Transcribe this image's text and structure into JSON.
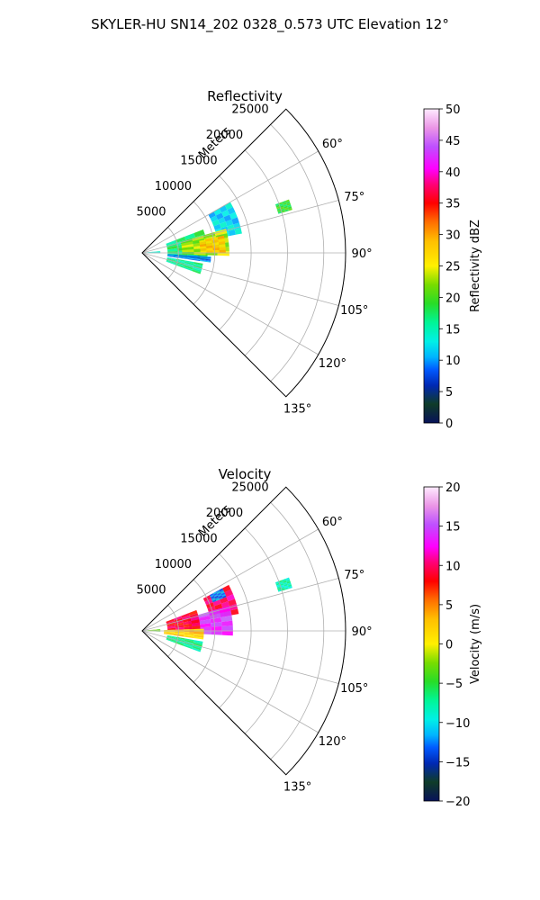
{
  "figure_title": "SKYLER-HU  SN14_202  0328_0.573 UTC Elevation 12°",
  "chart_data": [
    {
      "type": "heatmap",
      "projection": "polar-sector",
      "title": "Reflectivity",
      "range_label": "Meters",
      "range_ticks": [
        5000,
        10000,
        15000,
        20000,
        25000
      ],
      "range_tick_labels": [
        "5000",
        "10000",
        "15000",
        "20000",
        "25000"
      ],
      "angle_ticks_deg": [
        60,
        75,
        90,
        105,
        120,
        135
      ],
      "angle_tick_labels": [
        "60°",
        "75°",
        "90°",
        "105°",
        "120°",
        "135°"
      ],
      "angle_range_deg": [
        45,
        135
      ],
      "range_max": 28000,
      "grid": true,
      "colorbar": {
        "label": "Reflectivity dBZ",
        "range": [
          0,
          50
        ],
        "ticks": [
          0,
          5,
          10,
          15,
          20,
          25,
          30,
          35,
          40,
          45,
          50
        ],
        "tick_labels": [
          "0",
          "5",
          "10",
          "15",
          "20",
          "25",
          "30",
          "35",
          "40",
          "45",
          "50"
        ]
      },
      "echo_regions": [
        {
          "az": [
            60,
            79
          ],
          "r": [
            10500,
            14000
          ],
          "value": 12
        },
        {
          "az": [
            69,
            96
          ],
          "r": [
            3500,
            9000
          ],
          "value": 17
        },
        {
          "az": [
            74,
            92
          ],
          "r": [
            5500,
            12000
          ],
          "value": 23
        },
        {
          "az": [
            78,
            90
          ],
          "r": [
            8000,
            11500
          ],
          "value": 28
        },
        {
          "az": [
            93,
            98
          ],
          "r": [
            3500,
            9500
          ],
          "value": 9
        },
        {
          "az": [
            100,
            110
          ],
          "r": [
            3500,
            8500
          ],
          "value": 16
        },
        {
          "az": [
            70,
            74
          ],
          "r": [
            19500,
            21500
          ],
          "value": 19
        },
        {
          "az": [
            84,
            91
          ],
          "r": [
            500,
            2500
          ],
          "value": 14
        }
      ]
    },
    {
      "type": "heatmap",
      "projection": "polar-sector",
      "title": "Velocity",
      "range_label": "Meters",
      "range_ticks": [
        5000,
        10000,
        15000,
        20000,
        25000
      ],
      "range_tick_labels": [
        "5000",
        "10000",
        "15000",
        "20000",
        "25000"
      ],
      "angle_ticks_deg": [
        60,
        75,
        90,
        105,
        120,
        135
      ],
      "angle_tick_labels": [
        "60°",
        "75°",
        "90°",
        "105°",
        "120°",
        "135°"
      ],
      "angle_range_deg": [
        45,
        135
      ],
      "range_max": 28000,
      "grid": true,
      "colorbar": {
        "label": "Velocity (m/s)",
        "range": [
          -20,
          20
        ],
        "ticks": [
          -20,
          -15,
          -10,
          -5,
          0,
          5,
          10,
          15,
          20
        ],
        "tick_labels": [
          "−20",
          "−15",
          "−10",
          "−5",
          "0",
          "5",
          "10",
          "15",
          "20"
        ]
      },
      "echo_regions": [
        {
          "az": [
            62,
            80
          ],
          "r": [
            9500,
            13500
          ],
          "value": 10
        },
        {
          "az": [
            74,
            93
          ],
          "r": [
            6500,
            12500
          ],
          "value": 14
        },
        {
          "az": [
            69,
            88
          ],
          "r": [
            3500,
            8000
          ],
          "value": 9
        },
        {
          "az": [
            88,
            98
          ],
          "r": [
            3000,
            8500
          ],
          "value": 2
        },
        {
          "az": [
            100,
            110
          ],
          "r": [
            3500,
            8500
          ],
          "value": -7
        },
        {
          "az": [
            62,
            68
          ],
          "r": [
            10500,
            12500
          ],
          "value": -12
        },
        {
          "az": [
            70,
            74
          ],
          "r": [
            19500,
            21500
          ],
          "value": -8
        },
        {
          "az": [
            84,
            92
          ],
          "r": [
            500,
            2500
          ],
          "value": -3
        }
      ]
    }
  ]
}
